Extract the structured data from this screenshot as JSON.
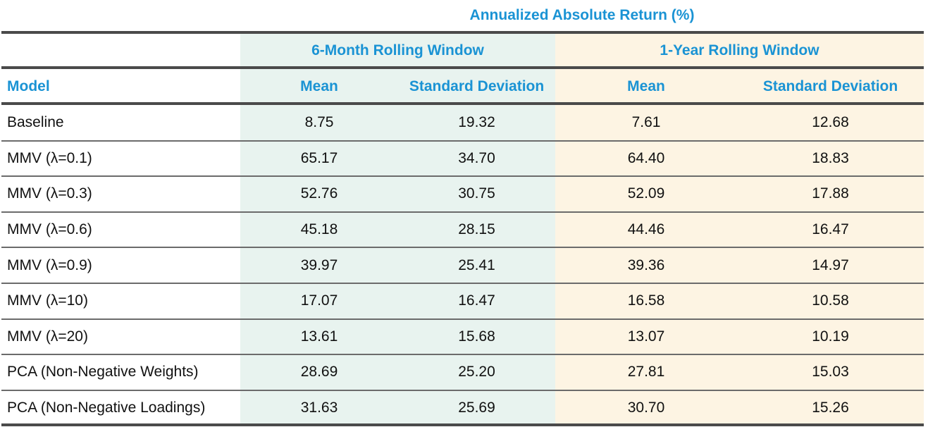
{
  "table": {
    "super_header": "Annualized Absolute Return (%)",
    "group_headers": [
      "6-Month Rolling Window",
      "1-Year Rolling Window"
    ],
    "columns": [
      "Model",
      "Mean",
      "Standard Deviation",
      "Mean",
      "Standard Deviation"
    ],
    "rows": [
      [
        "Baseline",
        "8.75",
        "19.32",
        "7.61",
        "12.68"
      ],
      [
        "MMV (λ=0.1)",
        "65.17",
        "34.70",
        "64.40",
        "18.83"
      ],
      [
        "MMV (λ=0.3)",
        "52.76",
        "30.75",
        "52.09",
        "17.88"
      ],
      [
        "MMV (λ=0.6)",
        "45.18",
        "28.15",
        "44.46",
        "16.47"
      ],
      [
        "MMV (λ=0.9)",
        "39.97",
        "25.41",
        "39.36",
        "14.97"
      ],
      [
        "MMV (λ=10)",
        "17.07",
        "16.47",
        "16.58",
        "10.58"
      ],
      [
        "MMV (λ=20)",
        "13.61",
        "15.68",
        "13.07",
        "10.19"
      ],
      [
        "PCA (Non-Negative Weights)",
        "28.69",
        "25.20",
        "27.81",
        "15.03"
      ],
      [
        "PCA (Non-Negative Loadings)",
        "31.63",
        "25.69",
        "30.70",
        "15.26"
      ]
    ],
    "colors": {
      "header_text": "#1a93d4",
      "six_month_bg": "#e8f3ef",
      "one_year_bg": "#fdf4e3",
      "rule": "#4a4a4a"
    }
  }
}
